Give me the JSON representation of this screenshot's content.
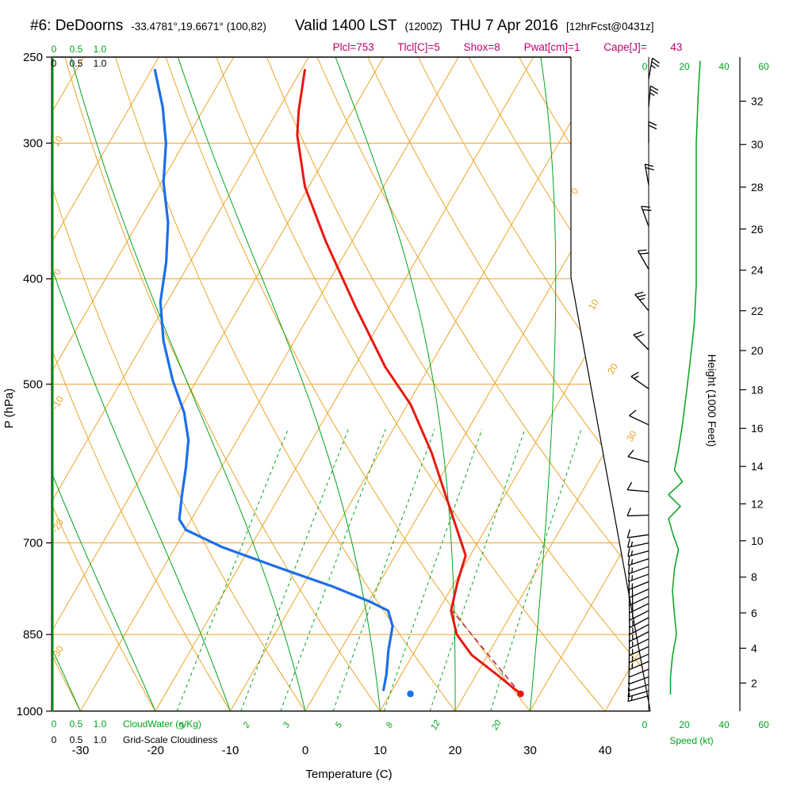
{
  "header": {
    "station": "#6: DeDoorns",
    "coords": "-33.4781°,19.6671° (100,82)",
    "valid": "Valid 1400 LST",
    "valid_z": "(1200Z)",
    "valid_date": "THU 7 Apr 2016",
    "fcst": "[12hrFcst@0431z]",
    "params": "Plcl=753 Tlcl[C]=5 Shox=8 Pwat[cm]=1 Cape[J]= 43"
  },
  "labels": {
    "pressure_axis": "P (hPa)",
    "temperature_axis": "Temperature (C)",
    "height_axis": "Height (1000 Feet)",
    "speed_axis": "Speed (kt)",
    "cloudwater": "CloudWater (g/Kg)",
    "cloudiness": "Grid-Scale Cloudiness"
  },
  "colors": {
    "grid_orange": "#eca428",
    "grid_green": "#00a41c",
    "temperature_curve": "#e81810",
    "dewpoint_curve": "#1c6fe8",
    "parcel_dashed": "#b03060",
    "params_text": "#c2006a",
    "barbs": "#000000"
  },
  "chart_data": {
    "type": "skewt-log-p sounding",
    "pressure_ticks_hpa": [
      250,
      300,
      400,
      500,
      700,
      850,
      1000
    ],
    "pressure_range": [
      250,
      1000
    ],
    "temperature_ticks_c": [
      -30,
      -20,
      -10,
      0,
      10,
      20,
      30,
      40
    ],
    "height_ticks_kft": [
      2,
      4,
      6,
      8,
      10,
      12,
      14,
      16,
      18,
      20,
      22,
      24,
      26,
      28,
      30,
      32
    ],
    "speed_ticks_kt": [
      0,
      20,
      40,
      60
    ],
    "cloud_scale": [
      "0",
      "0.5",
      "1.0"
    ],
    "dry_adiabat_edge_labels": [
      10,
      0,
      -10,
      -20,
      -30
    ],
    "isotherm_right_labels": [
      0,
      10,
      20,
      30
    ],
    "mixing_ratio_lines_gkg": [
      1,
      2,
      3,
      5,
      8,
      12,
      20
    ],
    "moist_adiabat_lines_c": [
      -30,
      -20,
      -10,
      0,
      10,
      20,
      30
    ],
    "dry_adiabat_lines_c": [
      -30,
      -20,
      -10,
      0,
      10,
      20,
      30,
      40,
      50,
      60,
      70,
      80,
      90,
      100,
      110
    ],
    "isobar_lines_hpa": [
      300,
      400,
      500,
      700,
      850
    ],
    "temperature_profile": [
      {
        "p": 257,
        "t": -49.5
      },
      {
        "p": 280,
        "t": -47.2
      },
      {
        "p": 295,
        "t": -45.5
      },
      {
        "p": 329,
        "t": -40.5
      },
      {
        "p": 370,
        "t": -33.4
      },
      {
        "p": 423,
        "t": -24.7
      },
      {
        "p": 482,
        "t": -15.9
      },
      {
        "p": 522,
        "t": -9.6
      },
      {
        "p": 578,
        "t": -3.1
      },
      {
        "p": 633,
        "t": 2.1
      },
      {
        "p": 686,
        "t": 6.7
      },
      {
        "p": 719,
        "t": 9.4
      },
      {
        "p": 762,
        "t": 10.4
      },
      {
        "p": 808,
        "t": 11.7
      },
      {
        "p": 850,
        "t": 14.3
      },
      {
        "p": 888,
        "t": 17.9
      },
      {
        "p": 929,
        "t": 23.2
      },
      {
        "p": 964,
        "t": 27.4
      }
    ],
    "dewpoint_profile": [
      {
        "p": 257,
        "t": -69.5
      },
      {
        "p": 278,
        "t": -65.6
      },
      {
        "p": 300,
        "t": -62.4
      },
      {
        "p": 326,
        "t": -59.7
      },
      {
        "p": 355,
        "t": -56.0
      },
      {
        "p": 386,
        "t": -53.2
      },
      {
        "p": 420,
        "t": -50.9
      },
      {
        "p": 456,
        "t": -47.5
      },
      {
        "p": 496,
        "t": -43.2
      },
      {
        "p": 531,
        "t": -39.2
      },
      {
        "p": 563,
        "t": -36.5
      },
      {
        "p": 597,
        "t": -34.7
      },
      {
        "p": 633,
        "t": -33.1
      },
      {
        "p": 666,
        "t": -31.6
      },
      {
        "p": 681,
        "t": -29.9
      },
      {
        "p": 706,
        "t": -23.8
      },
      {
        "p": 737,
        "t": -14.8
      },
      {
        "p": 768,
        "t": -5.9
      },
      {
        "p": 792,
        "t": 0.0
      },
      {
        "p": 808,
        "t": 3.3
      },
      {
        "p": 835,
        "t": 5.1
      },
      {
        "p": 879,
        "t": 6.4
      },
      {
        "p": 925,
        "t": 8.0
      },
      {
        "p": 956,
        "t": 8.8
      }
    ],
    "parcel_path": [
      {
        "p": 964,
        "t": 27.4
      },
      {
        "p": 806,
        "t": 11.6
      }
    ],
    "surface_temp_point": {
      "p": 964,
      "t": 27.4
    },
    "surface_dewpoint_point": {
      "p": 964,
      "t": 12.7
    },
    "speed_profile_kt": [
      {
        "p": 252,
        "kt": 28
      },
      {
        "p": 270,
        "kt": 27
      },
      {
        "p": 300,
        "kt": 26
      },
      {
        "p": 335,
        "kt": 26
      },
      {
        "p": 370,
        "kt": 26
      },
      {
        "p": 405,
        "kt": 26
      },
      {
        "p": 440,
        "kt": 25
      },
      {
        "p": 475,
        "kt": 23
      },
      {
        "p": 510,
        "kt": 21
      },
      {
        "p": 545,
        "kt": 19
      },
      {
        "p": 575,
        "kt": 17
      },
      {
        "p": 600,
        "kt": 15
      },
      {
        "p": 615,
        "kt": 19
      },
      {
        "p": 632,
        "kt": 12
      },
      {
        "p": 648,
        "kt": 18
      },
      {
        "p": 665,
        "kt": 12
      },
      {
        "p": 685,
        "kt": 14
      },
      {
        "p": 710,
        "kt": 17
      },
      {
        "p": 740,
        "kt": 15
      },
      {
        "p": 775,
        "kt": 14
      },
      {
        "p": 815,
        "kt": 15
      },
      {
        "p": 850,
        "kt": 16
      },
      {
        "p": 890,
        "kt": 14
      },
      {
        "p": 930,
        "kt": 13
      },
      {
        "p": 965,
        "kt": 13
      }
    ],
    "wind_barbs": [
      {
        "p": 262,
        "dir": 10,
        "spd": 25
      },
      {
        "p": 278,
        "dir": 5,
        "spd": 25
      },
      {
        "p": 300,
        "dir": 0,
        "spd": 20
      },
      {
        "p": 328,
        "dir": 350,
        "spd": 20
      },
      {
        "p": 358,
        "dir": 340,
        "spd": 20
      },
      {
        "p": 392,
        "dir": 330,
        "spd": 20
      },
      {
        "p": 428,
        "dir": 320,
        "spd": 25
      },
      {
        "p": 465,
        "dir": 315,
        "spd": 20
      },
      {
        "p": 505,
        "dir": 305,
        "spd": 15
      },
      {
        "p": 545,
        "dir": 295,
        "spd": 10
      },
      {
        "p": 590,
        "dir": 285,
        "spd": 10
      },
      {
        "p": 628,
        "dir": 275,
        "spd": 10
      },
      {
        "p": 660,
        "dir": 268,
        "spd": 10
      },
      {
        "p": 688,
        "dir": 262,
        "spd": 10
      },
      {
        "p": 700,
        "dir": 258,
        "spd": 15
      },
      {
        "p": 712,
        "dir": 255,
        "spd": 15
      },
      {
        "p": 724,
        "dir": 252,
        "spd": 15
      },
      {
        "p": 736,
        "dir": 250,
        "spd": 15
      },
      {
        "p": 748,
        "dir": 250,
        "spd": 15
      },
      {
        "p": 760,
        "dir": 248,
        "spd": 15
      },
      {
        "p": 772,
        "dir": 246,
        "spd": 20
      },
      {
        "p": 784,
        "dir": 245,
        "spd": 20
      },
      {
        "p": 796,
        "dir": 244,
        "spd": 20
      },
      {
        "p": 808,
        "dir": 243,
        "spd": 20
      },
      {
        "p": 820,
        "dir": 242,
        "spd": 15
      },
      {
        "p": 832,
        "dir": 242,
        "spd": 15
      },
      {
        "p": 845,
        "dir": 243,
        "spd": 15
      },
      {
        "p": 858,
        "dir": 244,
        "spd": 15
      },
      {
        "p": 872,
        "dir": 245,
        "spd": 15
      },
      {
        "p": 886,
        "dir": 246,
        "spd": 15
      },
      {
        "p": 900,
        "dir": 247,
        "spd": 15
      },
      {
        "p": 915,
        "dir": 248,
        "spd": 10
      },
      {
        "p": 930,
        "dir": 250,
        "spd": 10
      },
      {
        "p": 945,
        "dir": 252,
        "spd": 10
      },
      {
        "p": 958,
        "dir": 254,
        "spd": 10
      },
      {
        "p": 968,
        "dir": 255,
        "spd": 15
      }
    ]
  }
}
